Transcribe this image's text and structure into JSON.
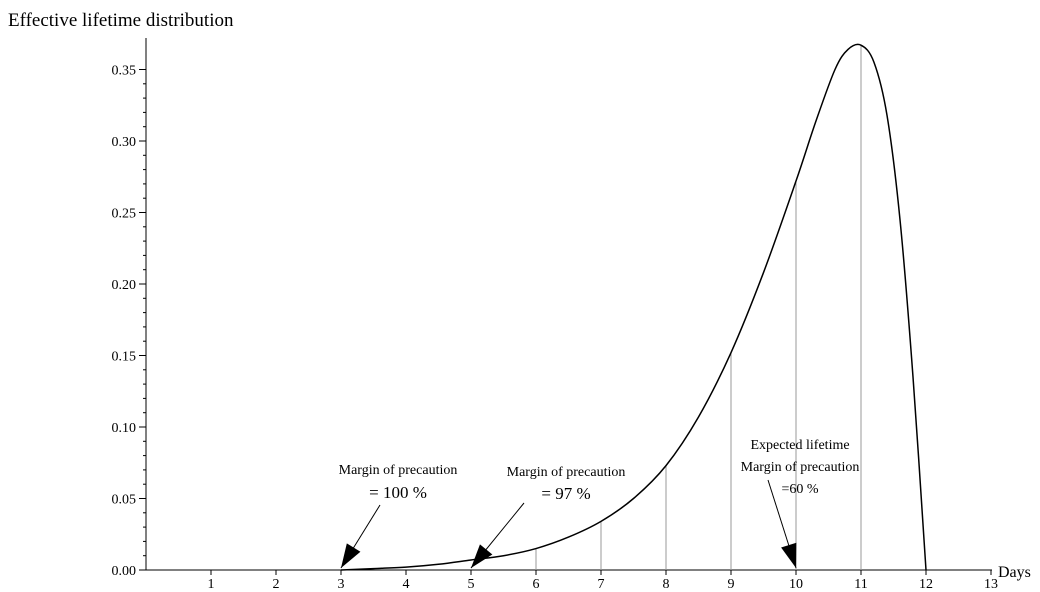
{
  "chart_data": {
    "type": "line",
    "title": "Effective lifetime distribution",
    "xlabel": "Days",
    "ylabel": "",
    "xlim": [
      0,
      13
    ],
    "ylim": [
      0,
      0.37
    ],
    "x_ticks": [
      "1",
      "2",
      "3",
      "4",
      "5",
      "6",
      "7",
      "8",
      "9",
      "10",
      "11",
      "12",
      "13"
    ],
    "y_ticks": [
      "0.00",
      "0.05",
      "0.10",
      "0.15",
      "0.20",
      "0.25",
      "0.30",
      "0.35"
    ],
    "grid": false,
    "legend": "none",
    "series": [
      {
        "x": [
          3.0,
          3.5,
          4.0,
          4.5,
          5.0,
          5.5,
          6.0,
          6.5,
          7.0,
          7.5,
          8.0,
          8.5,
          9.0,
          9.5,
          10.0,
          10.3,
          10.6,
          10.8,
          11.0,
          11.2,
          11.4,
          11.6,
          11.8,
          12.0
        ],
        "y": [
          0.0,
          0.001,
          0.002,
          0.004,
          0.007,
          0.01,
          0.015,
          0.023,
          0.034,
          0.05,
          0.073,
          0.107,
          0.152,
          0.208,
          0.272,
          0.313,
          0.35,
          0.364,
          0.367,
          0.355,
          0.318,
          0.245,
          0.135,
          0.0
        ]
      }
    ],
    "vertical_lines": [
      {
        "x": 6,
        "y": 0.015
      },
      {
        "x": 7,
        "y": 0.034
      },
      {
        "x": 8,
        "y": 0.073
      },
      {
        "x": 9,
        "y": 0.152
      },
      {
        "x": 10,
        "y": 0.272
      },
      {
        "x": 11,
        "y": 0.367
      }
    ],
    "annotations": [
      {
        "lines": [
          "Margin of precaution",
          "= 100 %"
        ],
        "arrow_to_x": 3,
        "arrow_to_y": 0.0
      },
      {
        "lines": [
          "Margin of precaution",
          "= 97 %"
        ],
        "arrow_to_x": 5,
        "arrow_to_y": 0.0
      },
      {
        "lines": [
          "Expected lifetime",
          "Margin of precaution",
          "=60 %"
        ],
        "arrow_to_x": 10,
        "arrow_to_y": 0.0
      }
    ]
  }
}
